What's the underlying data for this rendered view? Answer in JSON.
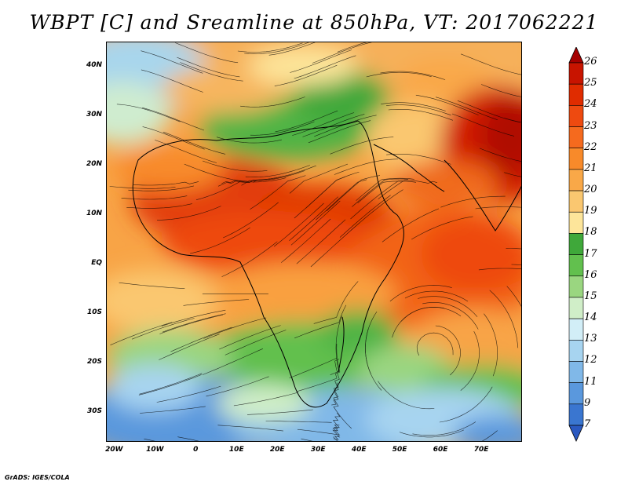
{
  "title": "WBPT [C] and Sreamline at 850hPa, VT: 2017062221",
  "map": {
    "lat_labels": [
      "40N",
      "30N",
      "20N",
      "10N",
      "EQ",
      "10S",
      "20S",
      "30S"
    ],
    "lat_values": [
      40,
      30,
      20,
      10,
      0,
      -10,
      -20,
      -30
    ],
    "lon_labels": [
      "20W",
      "10W",
      "0",
      "10E",
      "20E",
      "30E",
      "40E",
      "50E",
      "60E",
      "70E"
    ],
    "lon_values": [
      -20,
      -10,
      0,
      10,
      20,
      30,
      40,
      50,
      60,
      70
    ],
    "lon_range": [
      -22,
      80
    ],
    "lat_range": [
      -36,
      45
    ]
  },
  "colorbar": {
    "labels": [
      "26",
      "25",
      "24",
      "23",
      "22",
      "21",
      "20",
      "19",
      "18",
      "17",
      "16",
      "15",
      "14",
      "13",
      "12",
      "11",
      "9",
      "7"
    ],
    "colors": [
      "#a50000",
      "#c81400",
      "#e02c00",
      "#ee4a10",
      "#f56a1e",
      "#f88a2a",
      "#f9a848",
      "#fac770",
      "#fde59a",
      "#3fa83a",
      "#62c04e",
      "#9ad680",
      "#d0eec8",
      "#d2eef7",
      "#a7d4f0",
      "#80b8e8",
      "#5a98dd",
      "#3a76d0",
      "#2a58c0"
    ]
  },
  "footer": "GrADS: IGES/COLA"
}
